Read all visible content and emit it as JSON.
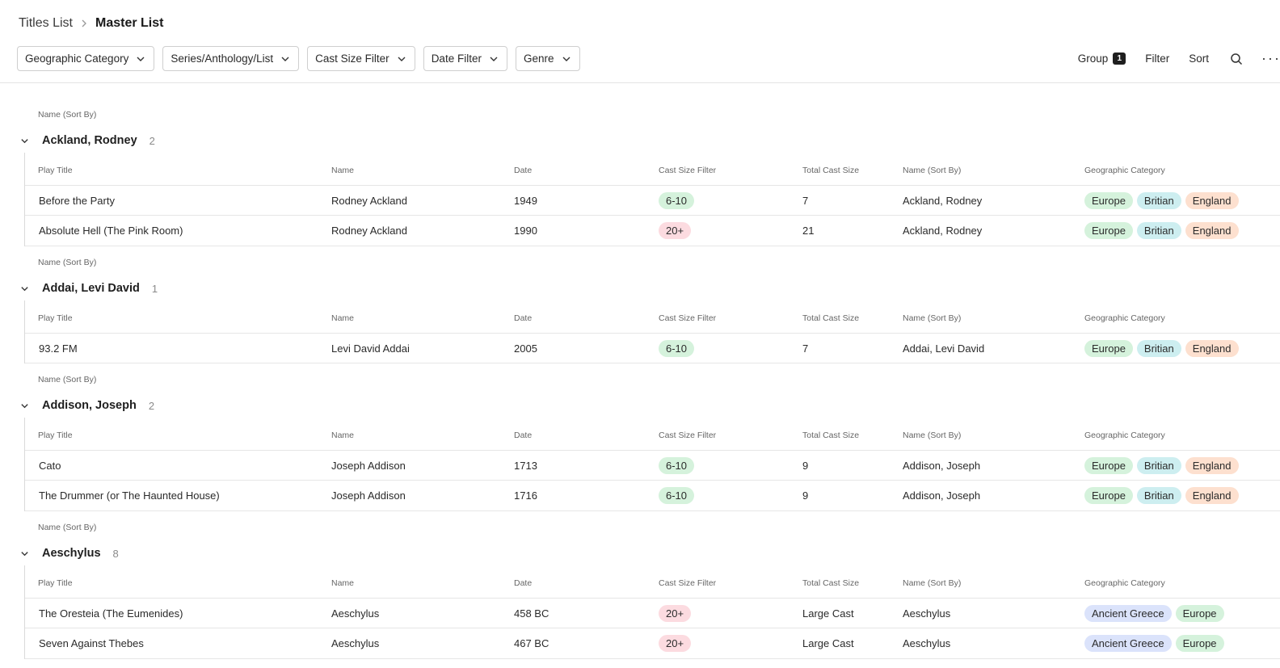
{
  "breadcrumb": {
    "parent": "Titles List",
    "current": "Master List"
  },
  "filters": [
    {
      "label": "Geographic Category"
    },
    {
      "label": "Series/Anthology/List"
    },
    {
      "label": "Cast Size Filter"
    },
    {
      "label": "Date Filter"
    },
    {
      "label": "Genre"
    }
  ],
  "toolbar": {
    "group_label": "Group",
    "group_count": "1",
    "filter_label": "Filter",
    "sort_label": "Sort",
    "search_icon": "search-icon",
    "more_icon": "more-icon"
  },
  "columns": [
    "Play Title",
    "Name",
    "Date",
    "Cast Size Filter",
    "Total Cast Size",
    "Name (Sort By)",
    "Geographic Category"
  ],
  "group_field_label": "Name (Sort By)",
  "colors": {
    "green": "#d5f2dc",
    "red": "#fcdbe0",
    "teal": "#cdeef0",
    "peach": "#fde0cf",
    "blue": "#dbe3fb"
  },
  "groups": [
    {
      "name": "Ackland, Rodney",
      "count": "2",
      "rows": [
        {
          "title": "Before the Party",
          "name": "Rodney Ackland",
          "date": "1949",
          "cast_filter": "6-10",
          "cast_color": "green",
          "total": "7",
          "sort_name": "Ackland, Rodney",
          "geo": [
            {
              "t": "Europe",
              "c": "green"
            },
            {
              "t": "Britian",
              "c": "teal"
            },
            {
              "t": "England",
              "c": "peach"
            }
          ]
        },
        {
          "title": "Absolute Hell (The Pink Room)",
          "name": "Rodney Ackland",
          "date": "1990",
          "cast_filter": "20+",
          "cast_color": "red",
          "total": "21",
          "sort_name": "Ackland, Rodney",
          "geo": [
            {
              "t": "Europe",
              "c": "green"
            },
            {
              "t": "Britian",
              "c": "teal"
            },
            {
              "t": "England",
              "c": "peach"
            }
          ]
        }
      ]
    },
    {
      "name": "Addai, Levi David",
      "count": "1",
      "rows": [
        {
          "title": "93.2 FM",
          "name": "Levi David Addai",
          "date": "2005",
          "cast_filter": "6-10",
          "cast_color": "green",
          "total": "7",
          "sort_name": "Addai, Levi David",
          "geo": [
            {
              "t": "Europe",
              "c": "green"
            },
            {
              "t": "Britian",
              "c": "teal"
            },
            {
              "t": "England",
              "c": "peach"
            }
          ]
        }
      ]
    },
    {
      "name": "Addison, Joseph",
      "count": "2",
      "rows": [
        {
          "title": "Cato",
          "name": "Joseph Addison",
          "date": "1713",
          "cast_filter": "6-10",
          "cast_color": "green",
          "total": "9",
          "sort_name": "Addison, Joseph",
          "geo": [
            {
              "t": "Europe",
              "c": "green"
            },
            {
              "t": "Britian",
              "c": "teal"
            },
            {
              "t": "England",
              "c": "peach"
            }
          ]
        },
        {
          "title": "The Drummer (or The Haunted House)",
          "name": "Joseph Addison",
          "date": "1716",
          "cast_filter": "6-10",
          "cast_color": "green",
          "total": "9",
          "sort_name": "Addison, Joseph",
          "geo": [
            {
              "t": "Europe",
              "c": "green"
            },
            {
              "t": "Britian",
              "c": "teal"
            },
            {
              "t": "England",
              "c": "peach"
            }
          ]
        }
      ]
    },
    {
      "name": "Aeschylus",
      "count": "8",
      "rows": [
        {
          "title": "The Oresteia (The Eumenides)",
          "name": "Aeschylus",
          "date": "458 BC",
          "cast_filter": "20+",
          "cast_color": "red",
          "total": "Large Cast",
          "sort_name": "Aeschylus",
          "geo": [
            {
              "t": "Ancient Greece",
              "c": "blue"
            },
            {
              "t": "Europe",
              "c": "green"
            }
          ]
        },
        {
          "title": "Seven Against Thebes",
          "name": "Aeschylus",
          "date": "467 BC",
          "cast_filter": "20+",
          "cast_color": "red",
          "total": "Large Cast",
          "sort_name": "Aeschylus",
          "geo": [
            {
              "t": "Ancient Greece",
              "c": "blue"
            },
            {
              "t": "Europe",
              "c": "green"
            }
          ]
        }
      ]
    }
  ]
}
